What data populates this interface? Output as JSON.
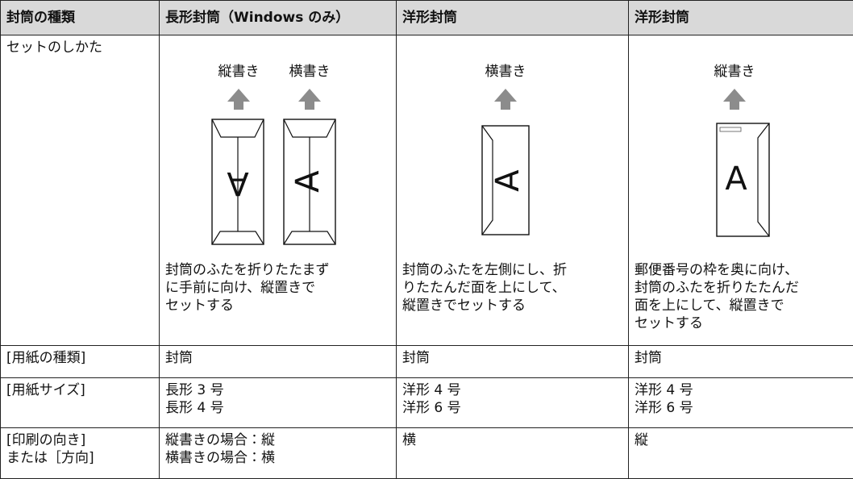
{
  "table": {
    "header": [
      "封筒の種類",
      "長形封筒（Windows のみ）",
      "洋形封筒",
      "洋形封筒"
    ],
    "setup": {
      "label": "セットのしかた",
      "cells": [
        {
          "captions": [
            "縦書き",
            "横書き"
          ],
          "glyphs": [
            "A",
            "A"
          ],
          "lines": [
            "封筒のふたを折りたたまず",
            "に手前に向け、縦置きで",
            "セットする"
          ]
        },
        {
          "captions": [
            "横書き"
          ],
          "glyphs": [
            "A"
          ],
          "lines": [
            "封筒のふたを左側にし、折",
            "りたたんだ面を上にして、",
            "縦置きでセットする"
          ]
        },
        {
          "captions": [
            "縦書き"
          ],
          "glyphs": [
            "A"
          ],
          "lines": [
            "郵便番号の枠を奥に向け、",
            "封筒のふたを折りたたんだ",
            "面を上にして、縦置きで",
            "セットする"
          ]
        }
      ]
    },
    "rows": [
      [
        [
          "[用紙の種類]"
        ],
        [
          "封筒"
        ],
        [
          "封筒"
        ],
        [
          "封筒"
        ]
      ],
      [
        [
          "[用紙サイズ]"
        ],
        [
          "長形 3 号",
          "長形 4 号"
        ],
        [
          "洋形 4 号",
          "洋形 6 号"
        ],
        [
          "洋形 4 号",
          "洋形 6 号"
        ]
      ],
      [
        [
          "[印刷の向き]",
          "または［方向]"
        ],
        [
          "縦書きの場合：縦",
          "横書きの場合：横"
        ],
        [
          "横"
        ],
        [
          "縦"
        ]
      ]
    ]
  }
}
